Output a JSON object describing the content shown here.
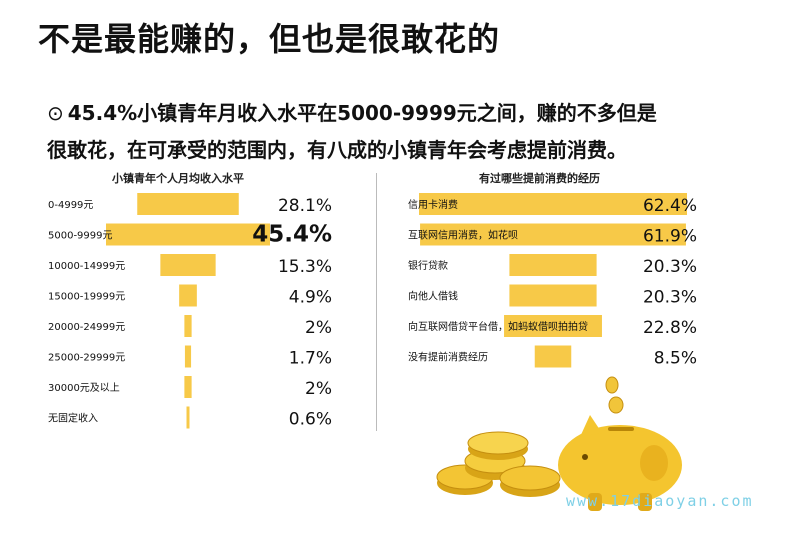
{
  "title": "不是最能赚的，但也是很敢花的",
  "lead": {
    "bullet": "⊙",
    "line1": "45.4%小镇青年月收入水平在5000-9999元之间，赚的不多但是",
    "line2": "很敢花，在可承受的范围内，有八成的小镇青年会考虑提前消费。"
  },
  "watermark": "www.17diaoyan.com",
  "chart_data": [
    {
      "type": "bar",
      "title": "小镇青年个人月均收入水平",
      "categories": [
        "0-4999元",
        "5000-9999元",
        "10000-14999元",
        "15000-19999元",
        "20000-24999元",
        "25000-29999元",
        "30000元及以上",
        "无固定收入"
      ],
      "values": [
        28.1,
        45.4,
        15.3,
        4.9,
        2,
        1.7,
        2,
        0.6
      ],
      "value_labels": [
        "28.1%",
        "45.4%",
        "15.3%",
        "4.9%",
        "2%",
        "1.7%",
        "2%",
        "0.6%"
      ],
      "highlight_index": 1,
      "bar_color": "#f7c948",
      "orientation": "horizontal",
      "alignment": "centered"
    },
    {
      "type": "bar",
      "title": "有过哪些提前消费的经历",
      "categories": [
        "信用卡消费",
        "互联网信用消费，如花呗",
        "银行贷款",
        "向他人借钱",
        "向互联网借贷平台借，如蚂蚁借呗拍拍贷",
        "没有提前消费经历"
      ],
      "values": [
        62.4,
        61.9,
        20.3,
        20.3,
        22.8,
        8.5
      ],
      "value_labels": [
        "62.4%",
        "61.9%",
        "20.3%",
        "20.3%",
        "22.8%",
        "8.5%"
      ],
      "bar_color": "#f7c948",
      "orientation": "horizontal",
      "alignment": "centered"
    }
  ]
}
